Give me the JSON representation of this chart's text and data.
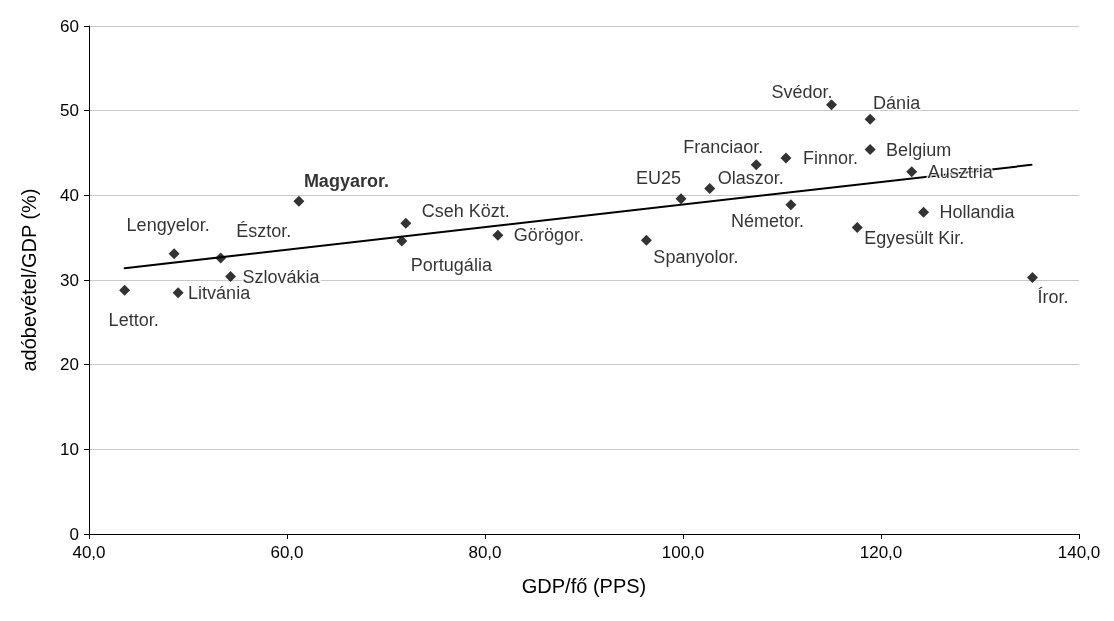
{
  "chart_data": {
    "type": "scatter",
    "xlabel": "GDP/fő (PPS)",
    "ylabel": "adóbevétel/GDP (%)",
    "xlim": [
      40,
      140
    ],
    "xticks": [
      {
        "value": 40,
        "label": "40,0"
      },
      {
        "value": 60,
        "label": "60,0"
      },
      {
        "value": 80,
        "label": "80,0"
      },
      {
        "value": 100,
        "label": "100,0"
      },
      {
        "value": 120,
        "label": "120,0"
      },
      {
        "value": 140,
        "label": "140,0"
      }
    ],
    "ylim": [
      0,
      60
    ],
    "yticks": [
      0,
      10,
      20,
      30,
      40,
      50,
      60
    ],
    "grid": "y",
    "marker": "diamond",
    "series": [
      {
        "color": "#000000",
        "x": [
          43.6,
          49.0,
          48.6,
          53.3,
          54.3,
          61.2,
          72.0,
          71.6,
          81.3,
          96.3,
          99.8,
          102.7,
          107.4,
          110.4,
          110.9,
          115.0,
          118.9,
          118.9,
          117.6,
          123.1,
          124.3,
          135.3
        ],
        "values": [
          28.8,
          28.5,
          33.1,
          32.6,
          30.4,
          39.3,
          36.7,
          34.6,
          35.3,
          34.7,
          39.6,
          40.8,
          43.6,
          44.4,
          38.9,
          50.7,
          49.0,
          45.4,
          36.2,
          42.8,
          38.0,
          30.3
        ],
        "value_labels": [
          "Lettor.",
          "Litvánia",
          "Lengyelor.",
          "Észtor.",
          "Szlovákia",
          "Magyaror.",
          "Cseh Közt.",
          "Portugália",
          "Görögor.",
          "Spanyolor.",
          "EU25",
          "Olaszor.",
          "Franciaor.",
          "Finnor.",
          "Németor.",
          "Svédor.",
          "Dánia",
          "Belgium",
          "Egyesült Kir.",
          "Ausztria",
          "Hollandia",
          "Íror."
        ]
      },
      {
        "type": "line",
        "color": "#000000",
        "marker": "none",
        "line_style": "solid",
        "x": [
          43.6,
          135.2
        ],
        "values": [
          31.4,
          43.6
        ]
      }
    ]
  }
}
